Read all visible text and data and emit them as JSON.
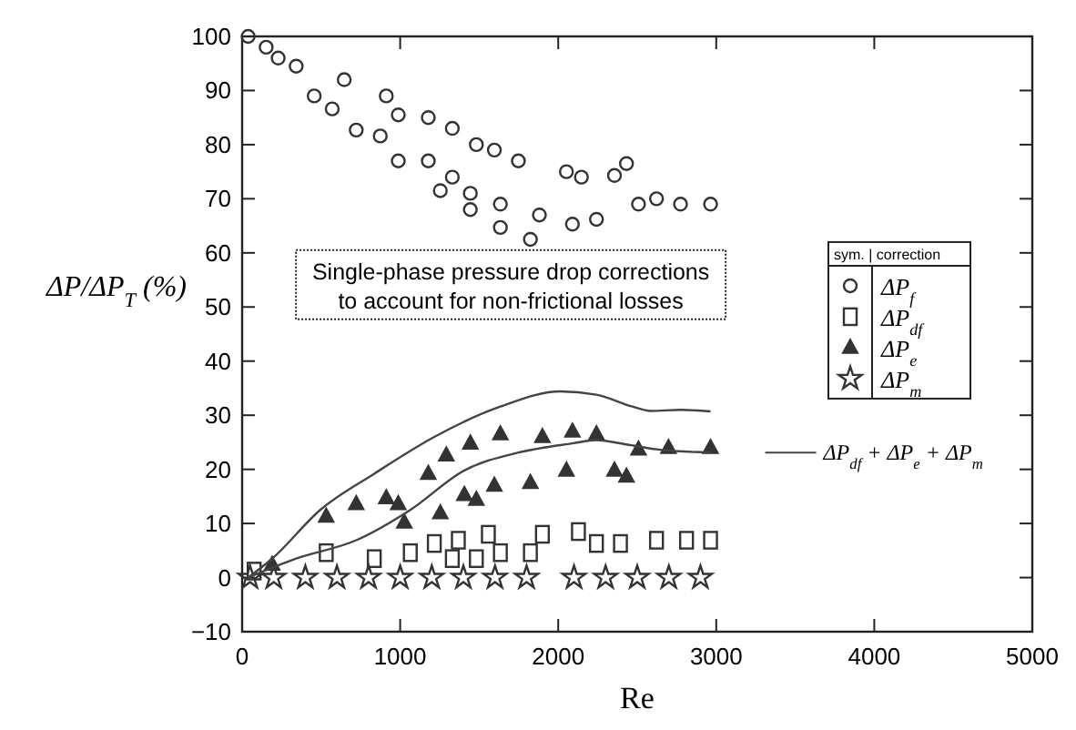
{
  "chart_data": {
    "type": "scatter",
    "xlabel": "Re",
    "ylabel": "ΔP/ΔP$_{T}$ (%)",
    "legend_title": "sym. | correction",
    "annotations": [
      "Single-phase pressure drop corrections\nto account for non-frictional losses"
    ],
    "xlim": [
      0,
      5000
    ],
    "xticks": [
      0,
      1000,
      2000,
      3000,
      4000,
      5000
    ],
    "ylim": [
      -10,
      100
    ],
    "yticks": [
      -10,
      0,
      10,
      20,
      30,
      40,
      50,
      60,
      70,
      80,
      90,
      100
    ],
    "grid": false,
    "legend": "right",
    "series": [
      {
        "name": "ΔP$_{f}$",
        "color": "#333333",
        "marker": "circle",
        "x": [
          38,
          152,
          228,
          342,
          646,
          912,
          988,
          1178,
          1330,
          1482,
          1596,
          1748,
          2052,
          2147,
          2356,
          2432,
          2508,
          2622,
          2774,
          2964,
          456,
          570,
          722,
          874,
          988,
          1178,
          1330,
          1254,
          1444,
          1634,
          1444,
          1634,
          1824,
          1881,
          2090,
          2242
        ],
        "values": [
          100,
          98,
          96,
          94.5,
          92,
          89,
          85.5,
          85,
          83,
          80,
          79,
          77,
          75,
          74,
          74.3,
          76.5,
          69,
          70,
          69,
          69,
          89,
          86.6,
          82.7,
          81.6,
          77,
          77,
          74,
          71.5,
          71,
          69,
          68,
          64.7,
          62.5,
          67,
          65.3,
          66.2
        ]
      },
      {
        "name": "ΔP$_{df}$",
        "color": "#333333",
        "marker": "square",
        "x": [
          76,
          532,
          836,
          1064,
          1216,
          1330,
          1368,
          1482,
          1558,
          1634,
          1824,
          1900,
          2128,
          2242,
          2394,
          2622,
          2812,
          2964
        ],
        "values": [
          1.2,
          4.6,
          3.5,
          4.6,
          6.3,
          3.5,
          6.9,
          3.5,
          8,
          4.6,
          4.6,
          8,
          8.5,
          6.3,
          6.3,
          6.9,
          6.9,
          6.9
        ]
      },
      {
        "name": "ΔP$_{e}$",
        "color": "#333333",
        "marker": "triangle",
        "x": [
          190,
          532,
          722,
          912,
          988,
          1026,
          1178,
          1254,
          1292,
          1406,
          1444,
          1482,
          1596,
          1634,
          1824,
          1900,
          2052,
          2090,
          2242,
          2356,
          2432,
          2508,
          2698,
          2964
        ],
        "values": [
          2.4,
          11.3,
          13.6,
          14.7,
          13.6,
          10.2,
          19.2,
          11.9,
          22.6,
          15.3,
          24.8,
          14.4,
          17,
          26.5,
          17.5,
          26,
          19.8,
          27,
          26.5,
          19.8,
          18.7,
          23.7,
          24,
          24
        ]
      },
      {
        "name": "ΔP$_{m}$",
        "color": "#333333",
        "marker": "star",
        "x": [
          50,
          200,
          400,
          600,
          800,
          1000,
          1200,
          1400,
          1600,
          1800,
          2100,
          2300,
          2500,
          2700,
          2900
        ],
        "values": [
          0,
          0,
          0,
          0,
          0,
          0,
          0,
          0,
          0,
          0,
          0,
          0,
          0,
          0,
          0
        ]
      },
      {
        "type": "line",
        "color": "#444444",
        "x": [
          38,
          190,
          494,
          836,
          1216,
          1634,
          2014,
          2242,
          2470,
          2584,
          2774,
          2964
        ],
        "values": [
          0,
          3.5,
          12.5,
          19.2,
          26,
          31.6,
          34.4,
          33.8,
          31.6,
          30.8,
          31,
          30.7
        ]
      },
      {
        "type": "line",
        "name": "ΔP$_{df}$ + ΔP$_{e}$ + ΔP$_{m}$",
        "color": "#444444",
        "x": [
          38,
          342,
          722,
          1064,
          1406,
          1748,
          2090,
          2242,
          2432,
          2622,
          2964
        ],
        "values": [
          0,
          3.5,
          6.9,
          12.5,
          19.8,
          23.1,
          24.8,
          25.4,
          24.6,
          23.7,
          23.1
        ]
      }
    ]
  }
}
